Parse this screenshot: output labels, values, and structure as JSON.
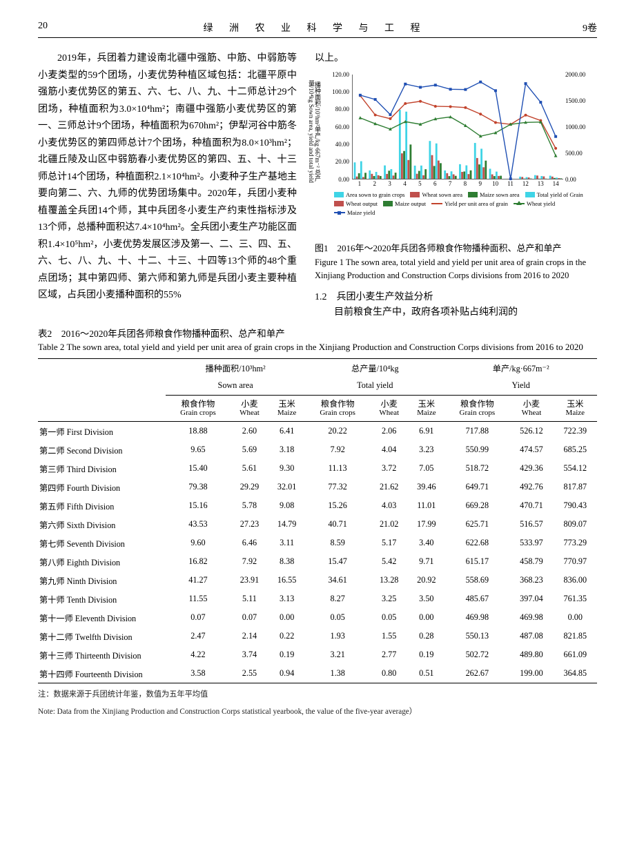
{
  "page": {
    "number": "20",
    "journal_title": "绿 洲 农 业 科 学 与 工 程",
    "volume": "9卷"
  },
  "left_paragraph": "2019年，兵团着力建设南北疆中强筋、中筋、中弱筋等小麦类型的59个团场，小麦优势种植区域包括：北疆平原中强筋小麦优势区的第五、六、七、八、九、十二师总计29个团场，种植面积为3.0×10⁴hm²；南疆中强筋小麦优势区的第一、三师总计9个团场，种植面积为670hm²；伊犁河谷中筋冬小麦优势区的第四师总计7个团场，种植面积为8.0×10³hm²；北疆丘陵及山区中弱筋春小麦优势区的第四、五、十、十三师总计14个团场，种植面积2.1×10⁴hm²。小麦种子生产基地主要向第二、六、九师的优势团场集中。2020年，兵团小麦种植覆盖全兵团14个师，其中兵团冬小麦生产约束性指标涉及13个师，总播种面积达7.4×10⁴hm²。全兵团小麦生产功能区面积1.4×10⁵hm²，小麦优势发展区涉及第一、二、三、四、五、六、七、八、九、十、十二、十三、十四等13个师的48个重点团场；其中第四师、第六师和第九师是兵团小麦主要种植区域，占兵团小麦播种面积的55%",
  "right_top_text": "以上。",
  "fig_caption_cn": "图1　2016年～2020年兵团各师粮食作物播种面积、总产和单产",
  "fig_caption_en": "Figure 1 The sown area, total yield and yield per unit area of grain crops in the Xinjiang Production and Construction Corps divisions from 2016 to 2020",
  "section_head": "1.2　兵团小麦生产效益分析",
  "section_body": "目前粮食生产中，政府各项补贴占纯利润的",
  "table_title_cn": "表2　2016～2020年兵团各师粮食作物播种面积、总产和单产",
  "table_title_en": "Table 2 The sown area, total yield and yield per unit area of grain crops in the Xinjiang Production and Construction Corps divisions from 2016 to 2020",
  "table": {
    "group_headers": [
      {
        "cn": "播种面积/10³hm²",
        "en": "Sown area"
      },
      {
        "cn": "总产量/10⁴kg",
        "en": "Total yield"
      },
      {
        "cn": "单产/kg·667m⁻²",
        "en": "Yield"
      }
    ],
    "sub_headers": [
      {
        "cn": "粮食作物",
        "en": "Grain crops"
      },
      {
        "cn": "小麦",
        "en": "Wheat"
      },
      {
        "cn": "玉米",
        "en": "Maize"
      }
    ],
    "rows": [
      {
        "label": "第一师 First Division",
        "vals": [
          "18.88",
          "2.60",
          "6.41",
          "20.22",
          "2.06",
          "6.91",
          "717.88",
          "526.12",
          "722.39"
        ]
      },
      {
        "label": "第二师 Second Division",
        "vals": [
          "9.65",
          "5.69",
          "3.18",
          "7.92",
          "4.04",
          "3.23",
          "550.99",
          "474.57",
          "685.25"
        ]
      },
      {
        "label": "第三师 Third Division",
        "vals": [
          "15.40",
          "5.61",
          "9.30",
          "11.13",
          "3.72",
          "7.05",
          "518.72",
          "429.36",
          "554.12"
        ]
      },
      {
        "label": "第四师 Fourth Division",
        "vals": [
          "79.38",
          "29.29",
          "32.01",
          "77.32",
          "21.62",
          "39.46",
          "649.71",
          "492.76",
          "817.87"
        ]
      },
      {
        "label": "第五师 Fifth Division",
        "vals": [
          "15.16",
          "5.78",
          "9.08",
          "15.26",
          "4.03",
          "11.01",
          "669.28",
          "470.71",
          "790.43"
        ]
      },
      {
        "label": "第六师 Sixth Division",
        "vals": [
          "43.53",
          "27.23",
          "14.79",
          "40.71",
          "21.02",
          "17.99",
          "625.71",
          "516.57",
          "809.07"
        ]
      },
      {
        "label": "第七师 Seventh Division",
        "vals": [
          "9.60",
          "6.46",
          "3.11",
          "8.59",
          "5.17",
          "3.40",
          "622.68",
          "533.97",
          "773.29"
        ]
      },
      {
        "label": "第八师 Eighth Division",
        "vals": [
          "16.82",
          "7.92",
          "8.38",
          "15.47",
          "5.42",
          "9.71",
          "615.17",
          "458.79",
          "770.97"
        ]
      },
      {
        "label": "第九师 Ninth Division",
        "vals": [
          "41.27",
          "23.91",
          "16.55",
          "34.61",
          "13.28",
          "20.92",
          "558.69",
          "368.23",
          "836.00"
        ]
      },
      {
        "label": "第十师 Tenth Division",
        "vals": [
          "11.55",
          "5.11",
          "3.13",
          "8.27",
          "3.25",
          "3.50",
          "485.67",
          "397.04",
          "761.35"
        ]
      },
      {
        "label": "第十一师 Eleventh Division",
        "vals": [
          "0.07",
          "0.07",
          "0.00",
          "0.05",
          "0.05",
          "0.00",
          "469.98",
          "469.98",
          "0.00"
        ]
      },
      {
        "label": "第十二师 Twelfth Division",
        "vals": [
          "2.47",
          "2.14",
          "0.22",
          "1.93",
          "1.55",
          "0.28",
          "550.13",
          "487.08",
          "821.85"
        ]
      },
      {
        "label": "第十三师 Thirteenth Division",
        "vals": [
          "4.22",
          "3.74",
          "0.19",
          "3.21",
          "2.77",
          "0.19",
          "502.72",
          "489.80",
          "661.09"
        ]
      },
      {
        "label": "第十四师 Fourteenth Division",
        "vals": [
          "3.58",
          "2.55",
          "0.94",
          "1.38",
          "0.80",
          "0.51",
          "262.67",
          "199.00",
          "364.85"
        ]
      }
    ]
  },
  "note_cn": "注：数据来源于兵团统计年鉴，数值为五年平均值",
  "note_en": "Note: Data from the Xinjiang Production and Construction Corps statistical yearbook, the value of the five-year average）",
  "chart": {
    "ylabel_left": "播种面积/10³hm²单产/kg·667m⁻² 总产量/10⁴kg\nSown area, yield and total yield",
    "y_left_ticks": [
      120,
      100,
      80,
      60,
      40,
      20,
      0
    ],
    "y_right_ticks": [
      2000,
      1500,
      1000,
      500,
      0
    ],
    "x_ticks": [
      1,
      2,
      3,
      4,
      5,
      6,
      7,
      8,
      9,
      10,
      11,
      12,
      13,
      14
    ],
    "y_left_max": 120,
    "y_right_max": 2000,
    "colors": {
      "area_grain": "#3fd4e6",
      "area_wheat": "#c0504d",
      "area_maize": "#2e7d32",
      "total_yield": "#c0504d",
      "wheat_out": "#c0504d",
      "maize_out": "#2e7d32",
      "yield_grain": "#c2432c",
      "yield_wheat": "#2e7d32",
      "yield_maize": "#1f4fb3"
    },
    "bars": {
      "grain": [
        18.88,
        9.65,
        15.4,
        79.38,
        15.16,
        43.53,
        9.6,
        16.82,
        41.27,
        11.55,
        0.07,
        2.47,
        4.22,
        3.58
      ],
      "wheat": [
        2.6,
        5.69,
        5.61,
        29.29,
        5.78,
        27.23,
        6.46,
        7.92,
        23.91,
        5.11,
        0.07,
        2.14,
        3.74,
        2.55
      ],
      "maize": [
        6.41,
        3.18,
        9.3,
        32.01,
        9.08,
        14.79,
        3.11,
        8.38,
        16.55,
        3.13,
        0.0,
        0.22,
        0.19,
        0.94
      ]
    },
    "bars_ty": {
      "grain": [
        20.22,
        7.92,
        11.13,
        77.32,
        15.26,
        40.71,
        8.59,
        15.47,
        34.61,
        8.27,
        0.05,
        1.93,
        3.21,
        1.38
      ],
      "wheat": [
        2.06,
        4.04,
        3.72,
        21.62,
        4.03,
        21.02,
        5.17,
        5.42,
        13.28,
        3.25,
        0.05,
        1.55,
        2.77,
        0.8
      ],
      "maize": [
        6.91,
        3.23,
        7.05,
        39.46,
        11.01,
        17.99,
        3.4,
        9.71,
        20.92,
        3.5,
        0.0,
        0.28,
        0.19,
        0.51
      ]
    },
    "lines": {
      "grain": [
        718,
        551,
        519,
        650,
        669,
        626,
        623,
        615,
        559,
        486,
        470,
        550,
        503,
        263
      ],
      "wheat": [
        526,
        475,
        429,
        493,
        471,
        517,
        534,
        459,
        368,
        397,
        470,
        487,
        490,
        199
      ],
      "maize": [
        722,
        685,
        554,
        818,
        790,
        809,
        773,
        771,
        836,
        761,
        0,
        822,
        661,
        365
      ]
    },
    "line_right_max": 900,
    "legend": [
      {
        "label": "Area sown to grain crops",
        "type": "bar",
        "color_key": "area_grain"
      },
      {
        "label": "Wheat sown area",
        "type": "bar",
        "color_key": "area_wheat"
      },
      {
        "label": "Maize sown area",
        "type": "bar",
        "color_key": "area_maize"
      },
      {
        "label": "Total yield of Grain",
        "type": "bar",
        "color_key": "area_grain"
      },
      {
        "label": "Wheat output",
        "type": "bar",
        "color_key": "area_wheat"
      },
      {
        "label": "Maize output",
        "type": "bar",
        "color_key": "area_maize"
      },
      {
        "label": "Yield per unit area of grain",
        "type": "line",
        "color_key": "yield_grain",
        "mark": "dot"
      },
      {
        "label": "Wheat yield",
        "type": "line",
        "color_key": "yield_wheat",
        "mark": "tri"
      },
      {
        "label": "Maize yield",
        "type": "line",
        "color_key": "yield_maize",
        "mark": "sq"
      }
    ]
  }
}
